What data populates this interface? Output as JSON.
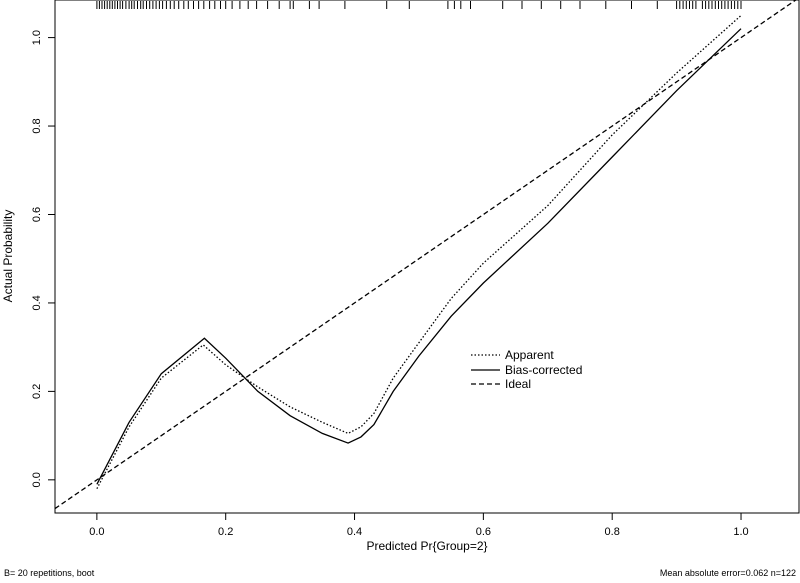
{
  "chart_data": {
    "type": "line",
    "xlabel": "Predicted Pr{Group=2}",
    "ylabel": "Actual Probability",
    "xlim": [
      -0.065,
      1.09
    ],
    "ylim": [
      -0.075,
      1.085
    ],
    "x_ticks": [
      0.0,
      0.2,
      0.4,
      0.6,
      0.8,
      1.0
    ],
    "y_ticks": [
      0.0,
      0.2,
      0.4,
      0.6,
      0.8,
      1.0
    ],
    "x_tick_labels": [
      "0.0",
      "0.2",
      "0.4",
      "0.6",
      "0.8",
      "1.0"
    ],
    "y_tick_labels": [
      "0.0",
      "0.2",
      "0.4",
      "0.6",
      "0.8",
      "1.0"
    ],
    "grid": false,
    "legend_position": "center-right",
    "series": [
      {
        "name": "Apparent",
        "style": "dotted",
        "points": [
          [
            0.0,
            -0.02
          ],
          [
            0.05,
            0.12
          ],
          [
            0.1,
            0.23
          ],
          [
            0.165,
            0.305
          ],
          [
            0.2,
            0.26
          ],
          [
            0.25,
            0.21
          ],
          [
            0.3,
            0.165
          ],
          [
            0.35,
            0.13
          ],
          [
            0.39,
            0.105
          ],
          [
            0.41,
            0.12
          ],
          [
            0.43,
            0.15
          ],
          [
            0.46,
            0.23
          ],
          [
            0.5,
            0.31
          ],
          [
            0.55,
            0.41
          ],
          [
            0.6,
            0.49
          ],
          [
            0.7,
            0.62
          ],
          [
            0.8,
            0.78
          ],
          [
            0.9,
            0.92
          ],
          [
            1.0,
            1.05
          ]
        ]
      },
      {
        "name": "Bias-corrected",
        "style": "solid",
        "points": [
          [
            0.0,
            -0.01
          ],
          [
            0.05,
            0.13
          ],
          [
            0.1,
            0.24
          ],
          [
            0.167,
            0.32
          ],
          [
            0.2,
            0.275
          ],
          [
            0.25,
            0.2
          ],
          [
            0.3,
            0.145
          ],
          [
            0.35,
            0.105
          ],
          [
            0.39,
            0.083
          ],
          [
            0.41,
            0.097
          ],
          [
            0.43,
            0.125
          ],
          [
            0.46,
            0.2
          ],
          [
            0.5,
            0.28
          ],
          [
            0.55,
            0.37
          ],
          [
            0.6,
            0.445
          ],
          [
            0.7,
            0.58
          ],
          [
            0.8,
            0.73
          ],
          [
            0.9,
            0.88
          ],
          [
            1.0,
            1.02
          ]
        ]
      },
      {
        "name": "Ideal",
        "style": "dashed",
        "points": [
          [
            -0.065,
            -0.065
          ],
          [
            1.085,
            1.085
          ]
        ]
      }
    ],
    "rug": [
      0.0,
      0.004,
      0.008,
      0.012,
      0.016,
      0.02,
      0.024,
      0.028,
      0.032,
      0.036,
      0.04,
      0.045,
      0.05,
      0.054,
      0.058,
      0.063,
      0.068,
      0.072,
      0.077,
      0.082,
      0.087,
      0.092,
      0.097,
      0.102,
      0.108,
      0.114,
      0.12,
      0.127,
      0.135,
      0.142,
      0.15,
      0.158,
      0.166,
      0.175,
      0.183,
      0.192,
      0.2,
      0.21,
      0.222,
      0.235,
      0.248,
      0.265,
      0.283,
      0.3,
      0.305,
      0.33,
      0.345,
      0.385,
      0.45,
      0.485,
      0.545,
      0.555,
      0.565,
      0.58,
      0.63,
      0.66,
      0.69,
      0.72,
      0.75,
      0.79,
      0.83,
      0.87,
      0.9,
      0.905,
      0.91,
      0.915,
      0.92,
      0.925,
      0.93,
      0.94,
      0.945,
      0.95,
      0.955,
      0.96,
      0.965,
      0.97,
      0.975,
      0.98,
      0.985,
      0.99,
      0.995,
      1.0
    ]
  },
  "legend": {
    "apparent": "Apparent",
    "bias_corrected": "Bias-corrected",
    "ideal": "Ideal"
  },
  "footer": {
    "left": "B= 20 repetitions, boot",
    "right": "Mean absolute error=0.062 n=122"
  }
}
